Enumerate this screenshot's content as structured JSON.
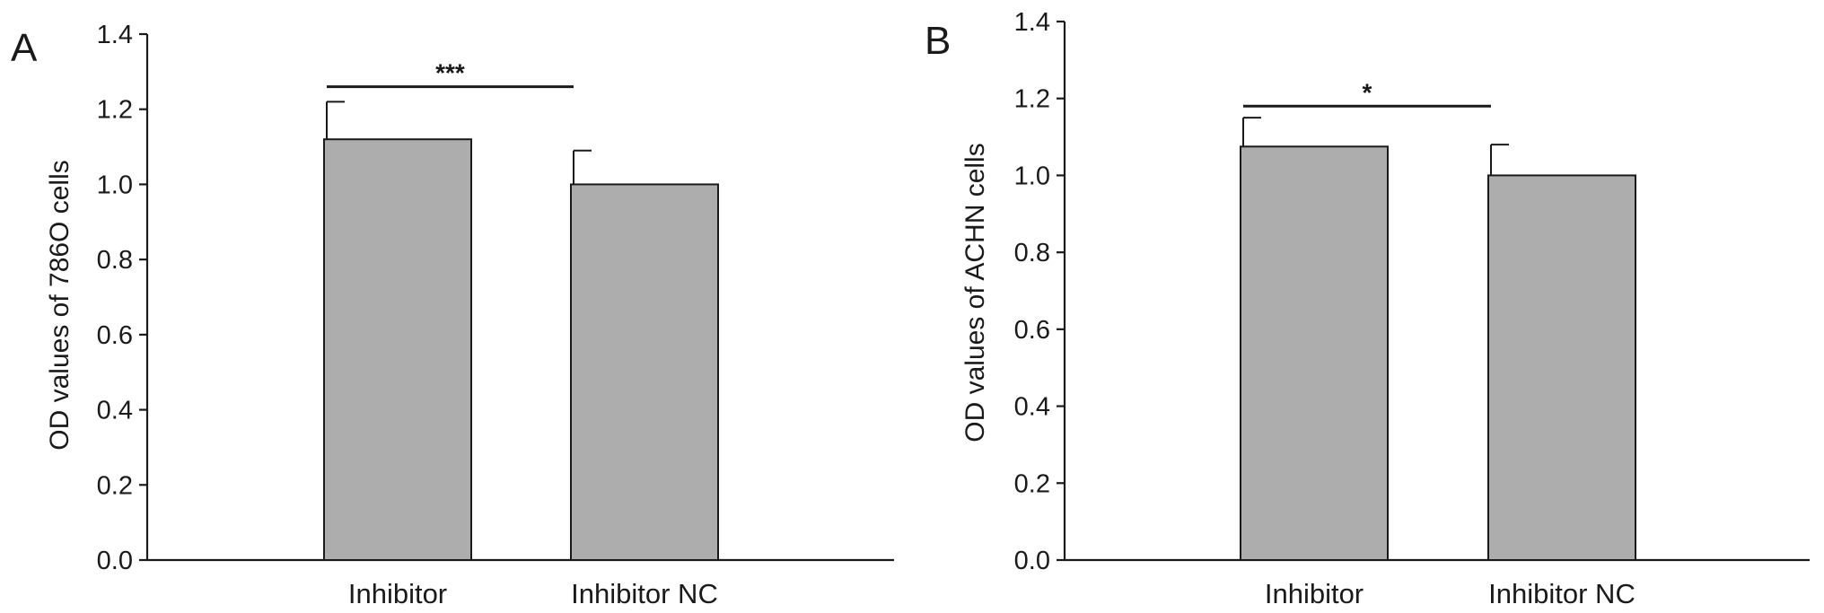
{
  "chart_data": [
    {
      "type": "bar",
      "panel_label": "A",
      "categories": [
        "Inhibitor",
        "Inhibitor NC"
      ],
      "values": [
        1.12,
        1.0
      ],
      "error": [
        0.1,
        0.09
      ],
      "ylabel": "OD values of 786O cells",
      "xlabel": "",
      "ylim": [
        0,
        1.4
      ],
      "yticks": [
        "0.0",
        "0.2",
        "0.4",
        "0.6",
        "0.8",
        "1.0",
        "1.2",
        "1.4"
      ],
      "bar_color": "#adadad",
      "significance": {
        "from": 0,
        "to": 1,
        "label": "***",
        "level": 1.26
      }
    },
    {
      "type": "bar",
      "panel_label": "B",
      "categories": [
        "Inhibitor",
        "Inhibitor NC"
      ],
      "values": [
        1.075,
        1.0
      ],
      "error": [
        0.075,
        0.08
      ],
      "ylabel": "OD values of ACHN cells",
      "xlabel": "",
      "ylim": [
        0,
        1.4
      ],
      "yticks": [
        "0.0",
        "0.2",
        "0.4",
        "0.6",
        "0.8",
        "1.0",
        "1.2",
        "1.4"
      ],
      "bar_color": "#adadad",
      "significance": {
        "from": 0,
        "to": 1,
        "label": "*",
        "level": 1.18
      }
    }
  ]
}
